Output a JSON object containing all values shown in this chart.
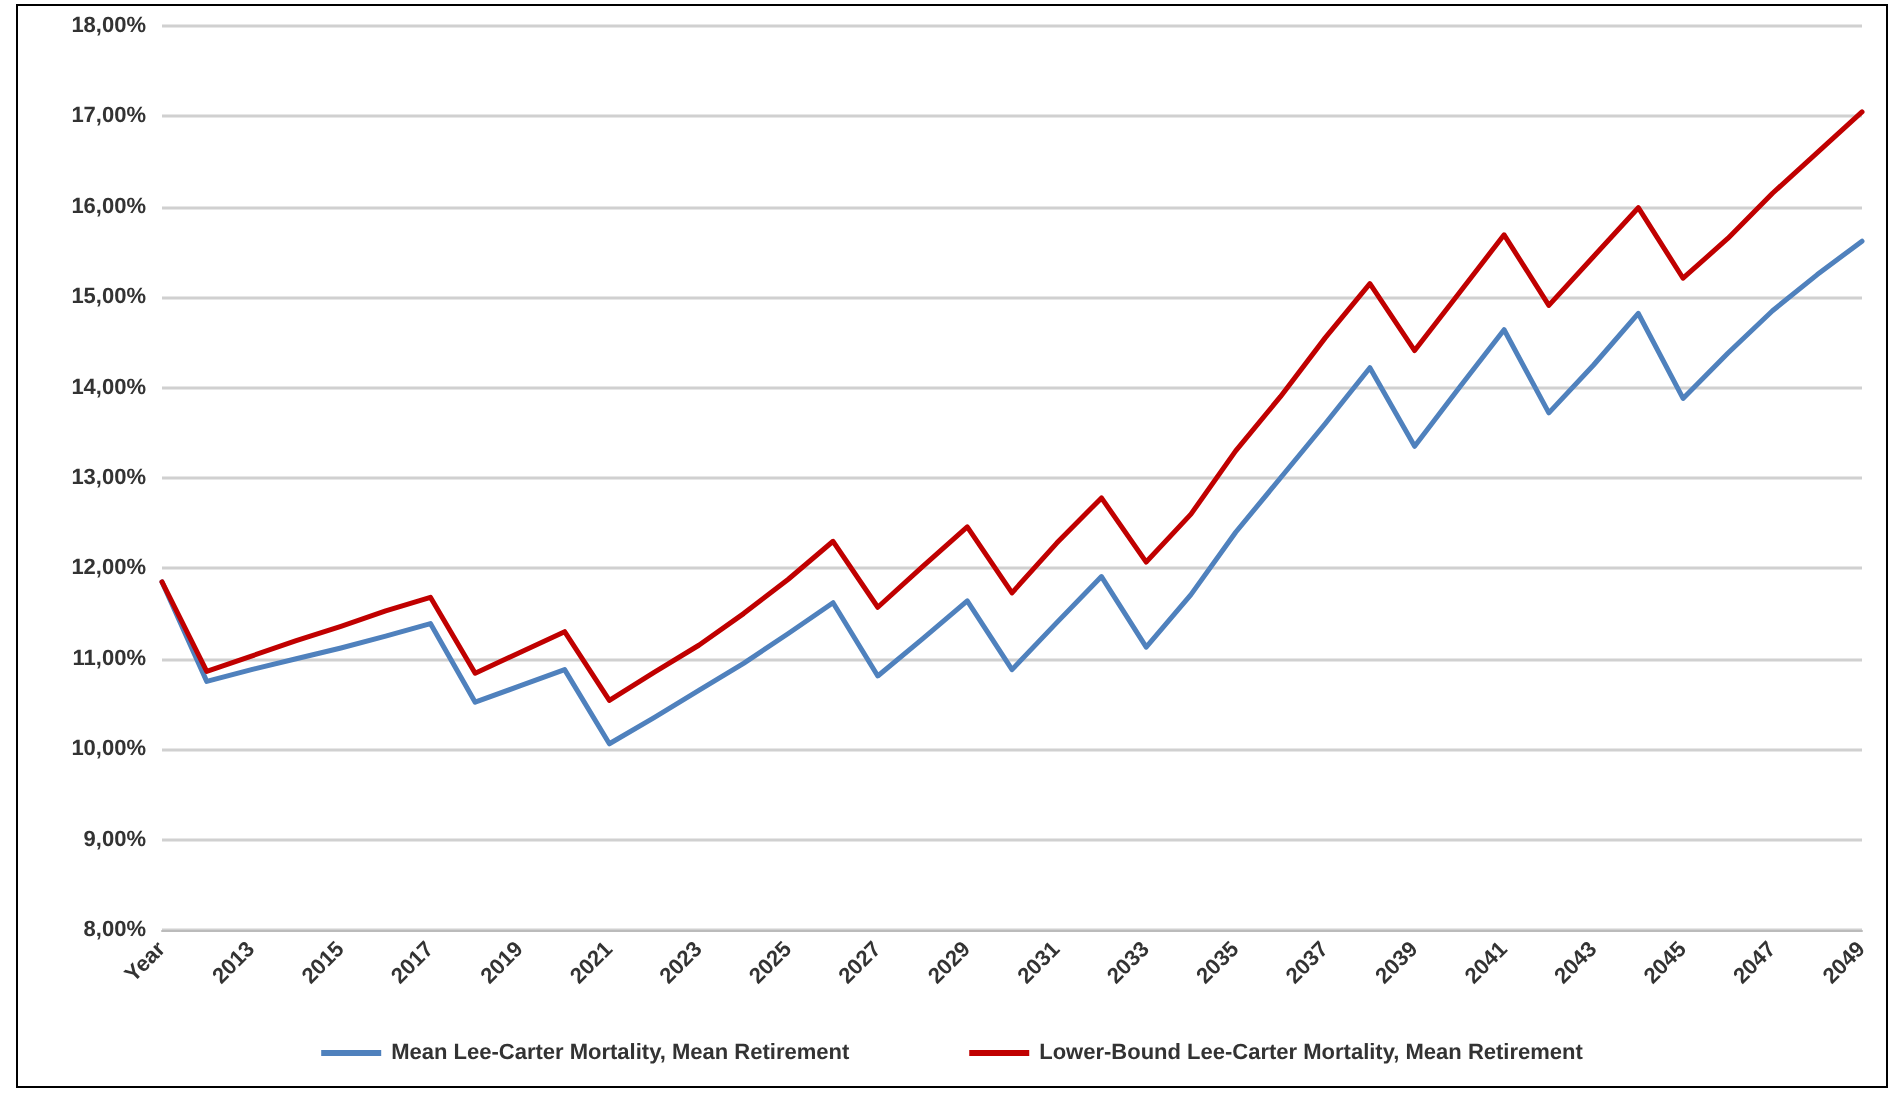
{
  "chart_data": {
    "type": "line",
    "categories": [
      "Year",
      null,
      "2013",
      null,
      "2015",
      null,
      "2017",
      null,
      "2019",
      null,
      "2021",
      null,
      "2023",
      null,
      "2025",
      null,
      "2027",
      null,
      "2029",
      null,
      "2031",
      null,
      "2033",
      null,
      "2035",
      null,
      "2037",
      null,
      "2039",
      null,
      "2041",
      null,
      "2043",
      null,
      "2045",
      null,
      "2047",
      null,
      "2049"
    ],
    "series": [
      {
        "name": "Mean Lee-Carter Mortality, Mean Retirement",
        "color": "#4f81bd",
        "values": [
          11.85,
          10.75,
          10.88,
          11.0,
          11.12,
          11.25,
          11.39,
          10.52,
          10.7,
          10.88,
          10.06,
          10.35,
          10.65,
          10.95,
          11.28,
          11.62,
          10.81,
          11.22,
          11.64,
          10.88,
          11.4,
          11.91,
          11.13,
          11.71,
          12.4,
          13.0,
          13.6,
          14.22,
          13.35,
          14.0,
          14.64,
          13.72,
          14.25,
          14.82,
          13.88,
          14.38,
          14.85,
          15.25,
          15.62
        ]
      },
      {
        "name": "Lower-Bound Lee-Carter Mortality, Mean Retirement",
        "color": "#c00000",
        "values": [
          11.85,
          10.86,
          11.03,
          11.2,
          11.36,
          11.53,
          11.68,
          10.84,
          11.07,
          11.3,
          10.54,
          10.85,
          11.15,
          11.5,
          11.88,
          12.3,
          11.57,
          12.02,
          12.46,
          11.73,
          12.28,
          12.78,
          12.07,
          12.6,
          13.3,
          13.9,
          14.55,
          15.15,
          14.41,
          15.05,
          15.69,
          14.91,
          15.45,
          15.99,
          15.21,
          15.65,
          16.15,
          16.6,
          17.05
        ]
      }
    ],
    "ylim": [
      8,
      18
    ],
    "yticks": [
      {
        "value": 8,
        "label": "8,00%"
      },
      {
        "value": 9,
        "label": "9,00%"
      },
      {
        "value": 10,
        "label": "10,00%"
      },
      {
        "value": 11,
        "label": "11,00%"
      },
      {
        "value": 12,
        "label": "12,00%"
      },
      {
        "value": 13,
        "label": "13,00%"
      },
      {
        "value": 14,
        "label": "14,00%"
      },
      {
        "value": 15,
        "label": "15,00%"
      },
      {
        "value": 16,
        "label": "16,00%"
      },
      {
        "value": 17,
        "label": "17,00%"
      },
      {
        "value": 18,
        "label": "18,00%"
      }
    ],
    "grid": "y",
    "legend": "bottom",
    "marker": "none",
    "line_style": "solid"
  }
}
